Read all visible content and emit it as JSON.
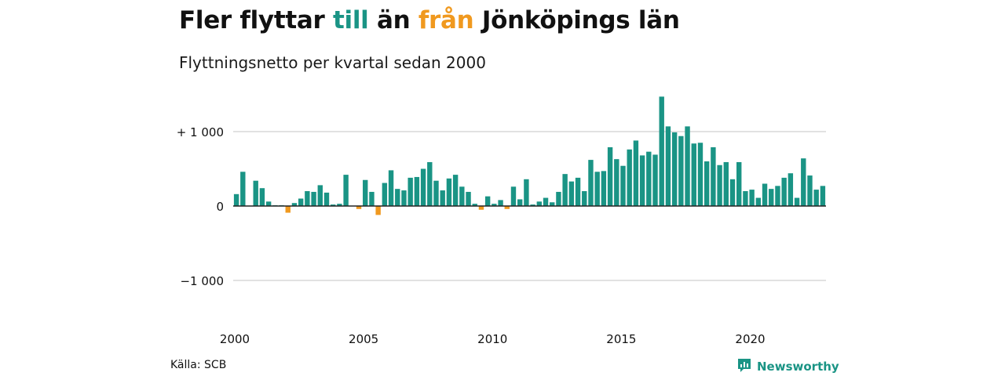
{
  "header": {
    "title_part1": "Fler flyttar ",
    "title_pos": "till",
    "title_part2": " än ",
    "title_neg": "från",
    "title_part3": " Jönköpings län",
    "subtitle": "Flyttningsnetto per kvartal sedan 2000"
  },
  "footer": {
    "source": "Källa: SCB",
    "brand": "Newsworthy",
    "brand_icon": "newsworthy-logo-icon"
  },
  "colors": {
    "positive": "#1a9485",
    "negative": "#f0991f",
    "grid": "#d9d9d9",
    "baseline": "#222222"
  },
  "chart_data": {
    "type": "bar",
    "title": "Fler flyttar till än från Jönköpings län",
    "subtitle": "Flyttningsnetto per kvartal sedan 2000",
    "xlabel": "",
    "ylabel": "",
    "x_start": "2000 Q1",
    "x_tick_labels": [
      "2000",
      "2005",
      "2010",
      "2015",
      "2020"
    ],
    "y_tick_labels": [
      "+ 1 000",
      "0",
      "−1 000"
    ],
    "y_ticks": [
      1000,
      0,
      -1000
    ],
    "ylim": [
      -1350,
      1500
    ],
    "grid": true,
    "legend": "none",
    "values": [
      160,
      460,
      0,
      340,
      240,
      60,
      10,
      10,
      -90,
      40,
      100,
      200,
      190,
      280,
      180,
      20,
      30,
      420,
      0,
      -40,
      350,
      190,
      -120,
      310,
      480,
      230,
      210,
      380,
      390,
      500,
      590,
      340,
      210,
      370,
      420,
      260,
      190,
      30,
      -50,
      130,
      30,
      80,
      -40,
      260,
      90,
      360,
      20,
      60,
      110,
      50,
      190,
      430,
      330,
      380,
      200,
      620,
      460,
      470,
      790,
      630,
      540,
      760,
      880,
      680,
      730,
      690,
      1470,
      1070,
      990,
      940,
      1070,
      840,
      850,
      600,
      790,
      550,
      590,
      360,
      590,
      200,
      220,
      110,
      300,
      230,
      270,
      380,
      440,
      110,
      640,
      410,
      220,
      270
    ]
  }
}
